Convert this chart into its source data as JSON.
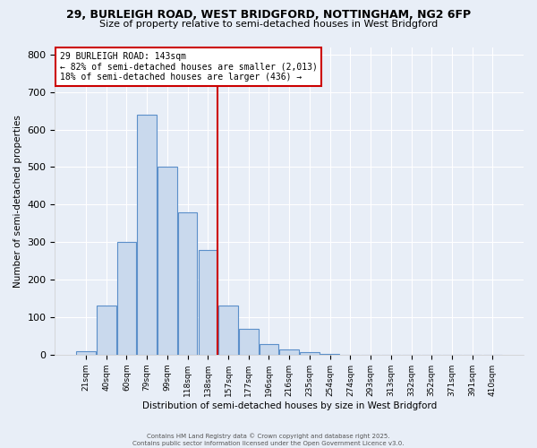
{
  "title_line1": "29, BURLEIGH ROAD, WEST BRIDGFORD, NOTTINGHAM, NG2 6FP",
  "title_line2": "Size of property relative to semi-detached houses in West Bridgford",
  "xlabel": "Distribution of semi-detached houses by size in West Bridgford",
  "ylabel": "Number of semi-detached properties",
  "bar_labels": [
    "21sqm",
    "40sqm",
    "60sqm",
    "79sqm",
    "99sqm",
    "118sqm",
    "138sqm",
    "157sqm",
    "177sqm",
    "196sqm",
    "216sqm",
    "235sqm",
    "254sqm",
    "274sqm",
    "293sqm",
    "313sqm",
    "332sqm",
    "352sqm",
    "371sqm",
    "391sqm",
    "410sqm"
  ],
  "bar_values": [
    10,
    130,
    300,
    640,
    500,
    380,
    280,
    130,
    70,
    28,
    13,
    6,
    2,
    0,
    0,
    0,
    0,
    0,
    0,
    0,
    0
  ],
  "bar_color": "#c9d9ed",
  "bar_edge_color": "#5b8fc9",
  "vline_bin_index": 6,
  "vline_color": "#cc0000",
  "annotation_title": "29 BURLEIGH ROAD: 143sqm",
  "annotation_line1": "← 82% of semi-detached houses are smaller (2,013)",
  "annotation_line2": "18% of semi-detached houses are larger (436) →",
  "annotation_box_color": "#ffffff",
  "annotation_box_edge": "#cc0000",
  "ylim": [
    0,
    820
  ],
  "yticks": [
    0,
    100,
    200,
    300,
    400,
    500,
    600,
    700,
    800
  ],
  "footer_line1": "Contains HM Land Registry data © Crown copyright and database right 2025.",
  "footer_line2": "Contains public sector information licensed under the Open Government Licence v3.0.",
  "bg_color": "#e8eef7",
  "grid_color": "#ffffff",
  "title_fontsize": 9,
  "subtitle_fontsize": 8
}
